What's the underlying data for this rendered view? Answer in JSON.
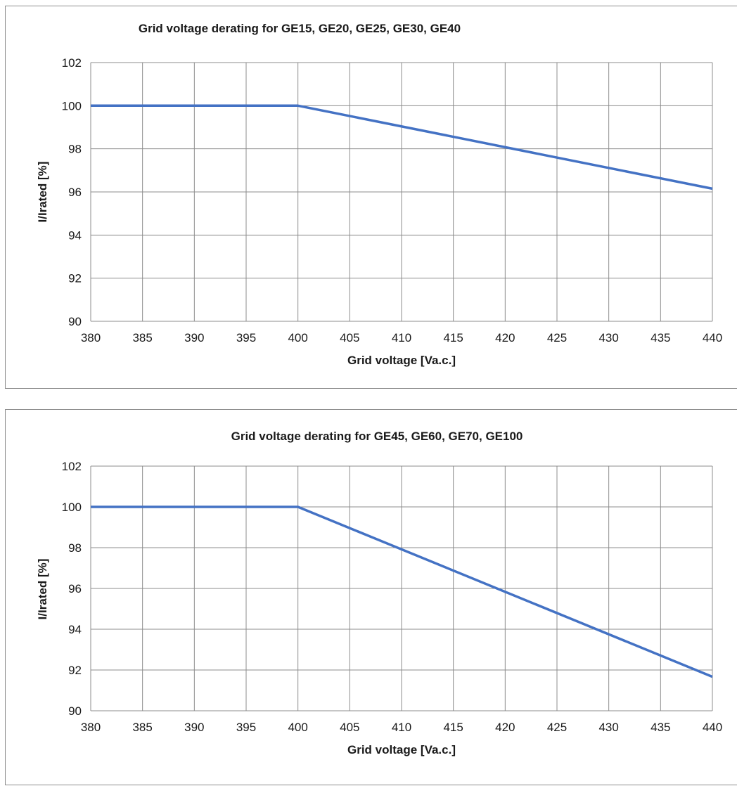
{
  "chart_data": [
    {
      "type": "line",
      "title": "Grid voltage derating for GE15, GE20, GE25, GE30, GE40",
      "xlabel": "Grid voltage [Va.c.]",
      "ylabel": "I/Irated [%]",
      "xlim": [
        380,
        440
      ],
      "ylim": [
        90,
        102
      ],
      "xticks": [
        380,
        385,
        390,
        395,
        400,
        405,
        410,
        415,
        420,
        425,
        430,
        435,
        440
      ],
      "yticks": [
        90,
        92,
        94,
        96,
        98,
        100,
        102
      ],
      "grid": true,
      "legend": "none",
      "series": [
        {
          "color": "#4472C4",
          "x": [
            380,
            400,
            440
          ],
          "y": [
            100,
            100,
            96.15
          ]
        }
      ]
    },
    {
      "type": "line",
      "title": "Grid voltage derating for GE45, GE60, GE70, GE100",
      "xlabel": "Grid voltage [Va.c.]",
      "ylabel": "I/Irated [%]",
      "xlim": [
        380,
        440
      ],
      "ylim": [
        90,
        102
      ],
      "xticks": [
        380,
        385,
        390,
        395,
        400,
        405,
        410,
        415,
        420,
        425,
        430,
        435,
        440
      ],
      "yticks": [
        90,
        92,
        94,
        96,
        98,
        100,
        102
      ],
      "grid": true,
      "legend": "none",
      "series": [
        {
          "color": "#4472C4",
          "x": [
            380,
            400,
            440
          ],
          "y": [
            100,
            100,
            91.67
          ]
        }
      ]
    }
  ]
}
